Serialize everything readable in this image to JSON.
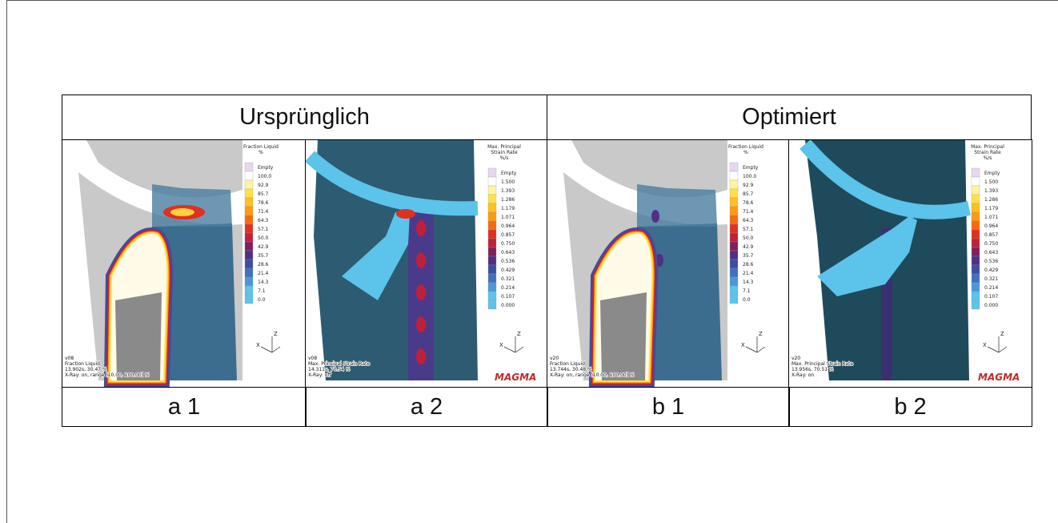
{
  "header": {
    "left": "Ursprünglich",
    "right": "Optimiert"
  },
  "panels": [
    {
      "label": "a 1",
      "legend_title": [
        "Fraction Liquid",
        "%"
      ],
      "legend_labels": [
        "Empty",
        "100.0",
        "92.9",
        "85.7",
        "78.6",
        "71.4",
        "64.3",
        "57.1",
        "50.0",
        "42.9",
        "35.7",
        "28.6",
        "21.4",
        "14.3",
        "7.1",
        "0.0"
      ],
      "caption": [
        "v08",
        "Fraction Liquid",
        "13.902s, 30.47 %",
        "X-Ray: on, range [10.00, 100.00] %"
      ],
      "axes": [
        "Z",
        "X"
      ]
    },
    {
      "label": "a 2",
      "legend_title": [
        "Max. Principal",
        "Strain Rate",
        "%/s"
      ],
      "legend_labels": [
        "Empty",
        "1.500",
        "1.393",
        "1.286",
        "1.179",
        "1.071",
        "0.964",
        "0.857",
        "0.750",
        "0.643",
        "0.536",
        "0.429",
        "0.321",
        "0.214",
        "0.107",
        "0.000"
      ],
      "caption": [
        "v08",
        "Max. Principal Strain Rate",
        "14.311s, 70.54 %",
        "X-Ray: off"
      ],
      "axes": [
        "Z",
        "X"
      ],
      "logo": "MAGMA"
    },
    {
      "label": "b 1",
      "legend_title": [
        "Fraction Liquid",
        "%"
      ],
      "legend_labels": [
        "Empty",
        "100.0",
        "92.9",
        "85.7",
        "78.6",
        "71.4",
        "64.3",
        "57.1",
        "50.0",
        "42.9",
        "35.7",
        "28.6",
        "21.4",
        "14.3",
        "7.1",
        "0.0"
      ],
      "caption": [
        "v20",
        "Fraction Liquid",
        "13.744s, 30.48 %",
        "X-Ray: on, range [10.00, 100.00] %"
      ],
      "axes": [
        "Z",
        "X"
      ]
    },
    {
      "label": "b 2",
      "legend_title": [
        "Max. Principal",
        "Strain Rate",
        "%/s"
      ],
      "legend_labels": [
        "Empty",
        "1.500",
        "1.393",
        "1.286",
        "1.179",
        "1.071",
        "0.964",
        "0.857",
        "0.750",
        "0.643",
        "0.536",
        "0.429",
        "0.321",
        "0.214",
        "0.107",
        "0.000"
      ],
      "caption": [
        "v20",
        "Max. Principal Strain Rate",
        "13.956s, 70.51 %",
        "X-Ray: on"
      ],
      "axes": [
        "Z",
        "X"
      ],
      "logo": "MAGMA"
    }
  ]
}
